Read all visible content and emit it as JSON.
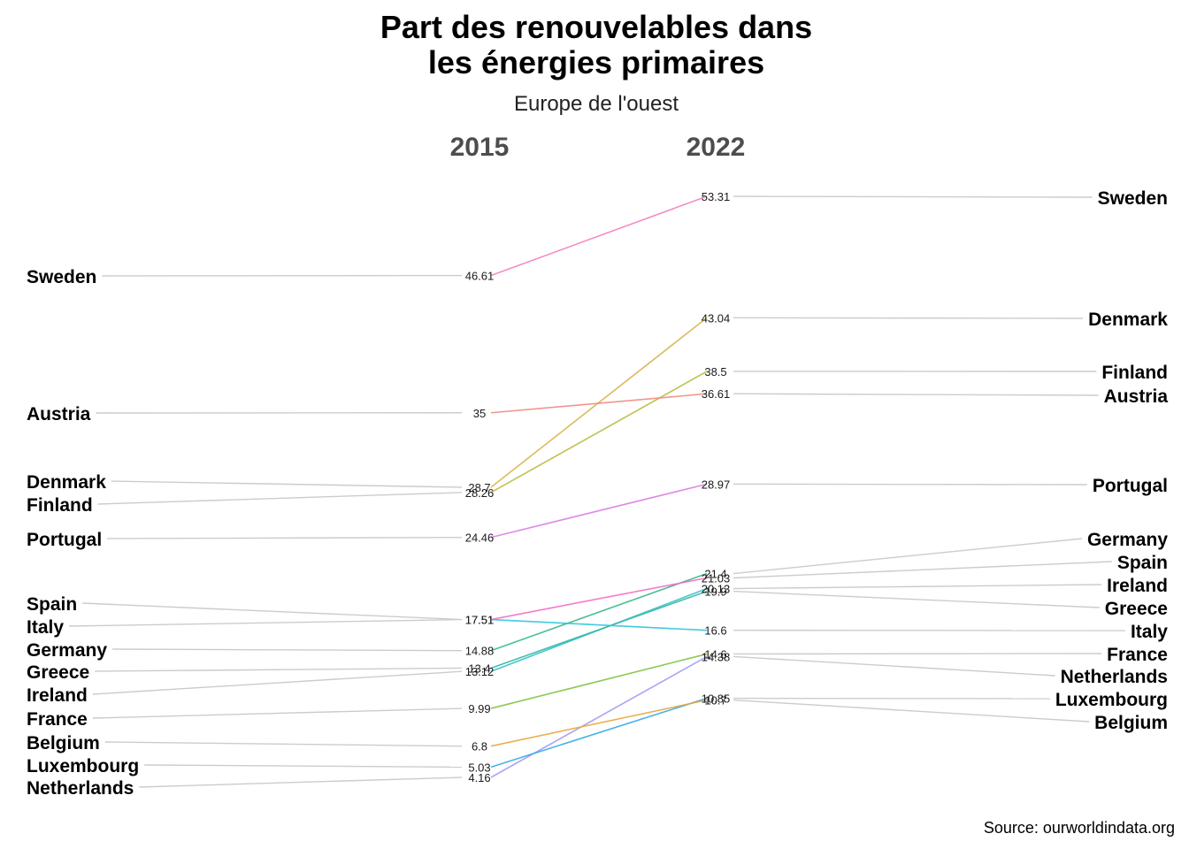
{
  "chart_data": {
    "type": "line",
    "chart_subtype": "slope",
    "title_line1": "Part des renouvelables dans",
    "title_line2": "les énergies primaires",
    "subtitle": "Europe de l'ouest",
    "x": [
      "2015",
      "2022"
    ],
    "caption": "Source: ourworldindata.org",
    "series": [
      {
        "name": "Sweden",
        "values": [
          46.61,
          53.31
        ],
        "color": "#f37ec0"
      },
      {
        "name": "Denmark",
        "values": [
          28.7,
          43.04
        ],
        "color": "#d8b24a"
      },
      {
        "name": "Finland",
        "values": [
          28.26,
          38.5
        ],
        "color": "#b8bb3d"
      },
      {
        "name": "Austria",
        "values": [
          35,
          36.61
        ],
        "color": "#f08a82"
      },
      {
        "name": "Portugal",
        "values": [
          24.46,
          28.97
        ],
        "color": "#d97fe0"
      },
      {
        "name": "Germany",
        "values": [
          14.88,
          21.4
        ],
        "color": "#39b88a"
      },
      {
        "name": "Spain",
        "values": [
          17.51,
          21.03
        ],
        "color": "#f66ac8"
      },
      {
        "name": "Ireland",
        "values": [
          13.12,
          20.13
        ],
        "color": "#38bfc7"
      },
      {
        "name": "Greece",
        "values": [
          13.4,
          19.9
        ],
        "color": "#30b8a8"
      },
      {
        "name": "Italy",
        "values": [
          17.51,
          16.6
        ],
        "color": "#2cc4dd"
      },
      {
        "name": "France",
        "values": [
          9.99,
          14.6
        ],
        "color": "#7fc342"
      },
      {
        "name": "Netherlands",
        "values": [
          4.16,
          14.38
        ],
        "color": "#a59bf0"
      },
      {
        "name": "Luxembourg",
        "values": [
          5.03,
          10.85
        ],
        "color": "#33aae6"
      },
      {
        "name": "Belgium",
        "values": [
          6.8,
          10.7
        ],
        "color": "#e8a640"
      }
    ],
    "labels_2015": [
      "46.61",
      "28.7",
      "28.26",
      "35",
      "24.46",
      "14.88",
      "17.51",
      "13.12",
      "13.4",
      "17.51",
      "9.99",
      "4.16",
      "5.03",
      "6.8"
    ],
    "labels_2022": [
      "53.31",
      "43.04",
      "38.5",
      "36.61",
      "28.97",
      "21.4",
      "21.03",
      "20.13",
      "19.9",
      "16.6",
      "14.6",
      "14.38",
      "10.85",
      "10.7"
    ],
    "order_left": [
      "Sweden",
      "Austria",
      "Denmark",
      "Finland",
      "Portugal",
      "Spain",
      "Italy",
      "Germany",
      "Greece",
      "Ireland",
      "France",
      "Belgium",
      "Luxembourg",
      "Netherlands"
    ],
    "order_right": [
      "Sweden",
      "Denmark",
      "Finland",
      "Austria",
      "Portugal",
      "Germany",
      "Spain",
      "Ireland",
      "Greece",
      "Italy",
      "France",
      "Netherlands",
      "Luxembourg",
      "Belgium"
    ],
    "ylim": [
      4.16,
      53.31
    ],
    "grid": false,
    "legend": "none",
    "label_line_color": "#cccccc"
  }
}
